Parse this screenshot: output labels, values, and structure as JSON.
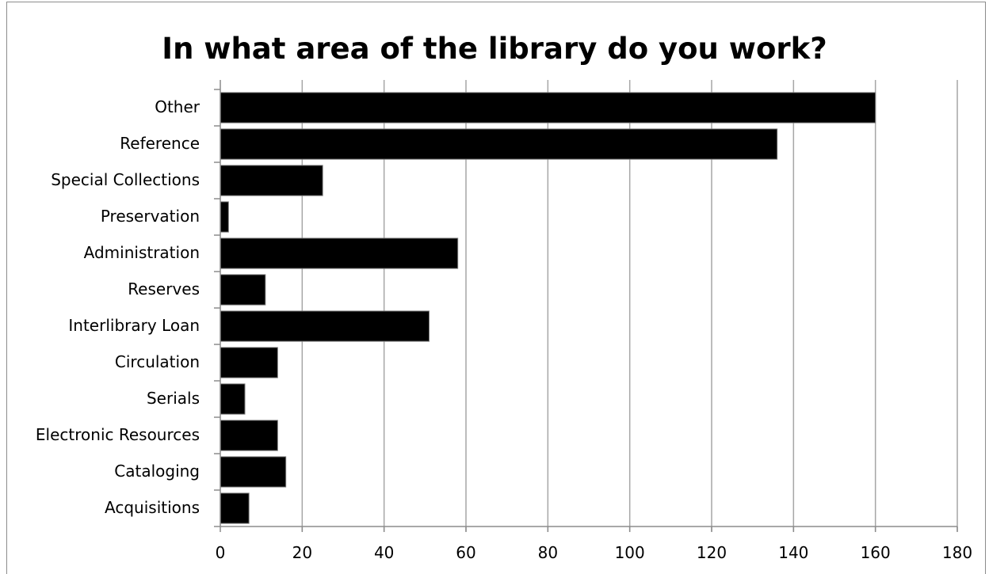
{
  "chart_data": {
    "type": "bar",
    "orientation": "horizontal",
    "title": "In what area of the library do you work?",
    "xlabel": "",
    "ylabel": "",
    "categories": [
      "Other",
      "Reference",
      "Special Collections",
      "Preservation",
      "Administration",
      "Reserves",
      "Interlibrary Loan",
      "Circulation",
      "Serials",
      "Electronic Resources",
      "Cataloging",
      "Acquisitions"
    ],
    "values": [
      160,
      136,
      25,
      2,
      58,
      11,
      51,
      14,
      6,
      14,
      16,
      7
    ],
    "xlim": [
      0,
      180
    ],
    "xticks": [
      0,
      20,
      40,
      60,
      80,
      100,
      120,
      140,
      160,
      180
    ],
    "grid": "vertical",
    "legend": "none",
    "colors": {
      "bar": "#000000",
      "grid": "#a6a6a6",
      "axis": "#8c8c8c"
    }
  }
}
